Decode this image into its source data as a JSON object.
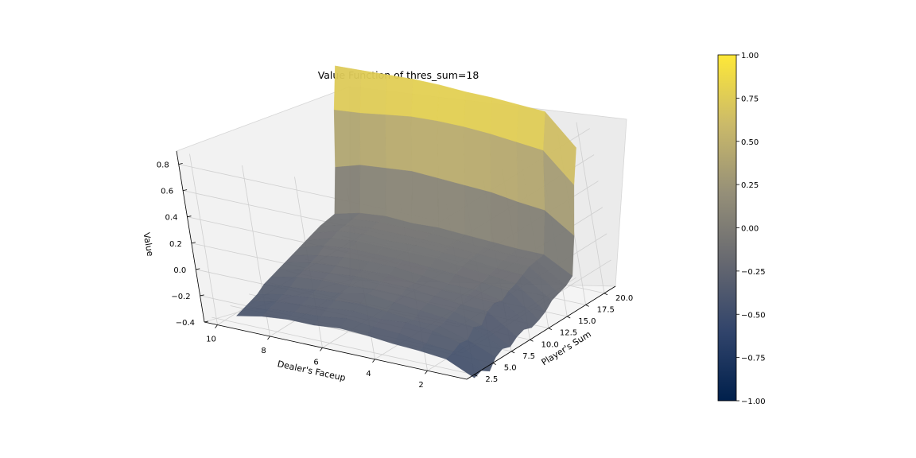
{
  "chart_data": {
    "type": "surface3d",
    "title": "Value Function of thres_sum=18",
    "xlabel": "Dealer's Faceup",
    "ylabel": "Player's Sum",
    "zlabel": "Value",
    "dealer": [
      1,
      2,
      3,
      4,
      5,
      6,
      7,
      8,
      9,
      10
    ],
    "player": [
      4,
      5,
      6,
      7,
      8,
      9,
      10,
      11,
      12,
      13,
      14,
      15,
      16,
      17,
      18,
      19,
      20,
      21
    ],
    "xticks": [
      "2",
      "4",
      "6",
      "8",
      "10"
    ],
    "yticks": [
      "2.5",
      "5.0",
      "7.5",
      "10.0",
      "12.5",
      "15.0",
      "17.5",
      "20.0"
    ],
    "zticks": [
      "−0.4",
      "−0.2",
      "0.0",
      "0.2",
      "0.4",
      "0.6",
      "0.8"
    ],
    "zlim": [
      -0.4,
      0.9
    ],
    "values": [
      [
        -0.5,
        -0.48,
        -0.52,
        -0.45,
        -0.42,
        -0.44,
        -0.4,
        -0.38,
        -0.4,
        -0.38,
        -0.35,
        -0.3,
        -0.28,
        -0.26,
        -0.22,
        0.05,
        0.4,
        0.65
      ],
      [
        -0.4,
        -0.38,
        -0.35,
        -0.36,
        -0.3,
        -0.32,
        -0.25,
        -0.22,
        -0.24,
        -0.2,
        -0.18,
        -0.15,
        -0.12,
        -0.11,
        -0.1,
        0.2,
        0.62,
        0.88
      ],
      [
        -0.38,
        -0.36,
        -0.3,
        -0.3,
        -0.28,
        -0.26,
        -0.24,
        -0.21,
        -0.2,
        -0.18,
        -0.16,
        -0.14,
        -0.12,
        -0.11,
        -0.1,
        0.22,
        0.64,
        0.89
      ],
      [
        -0.37,
        -0.33,
        -0.28,
        -0.3,
        -0.26,
        -0.24,
        -0.22,
        -0.21,
        -0.2,
        -0.16,
        -0.14,
        -0.12,
        -0.11,
        -0.1,
        -0.09,
        0.25,
        0.66,
        0.9
      ],
      [
        -0.35,
        -0.32,
        -0.3,
        -0.28,
        -0.24,
        -0.22,
        -0.2,
        -0.2,
        -0.18,
        -0.15,
        -0.12,
        -0.11,
        -0.1,
        -0.09,
        -0.08,
        0.26,
        0.67,
        0.9
      ],
      [
        -0.34,
        -0.3,
        -0.28,
        -0.26,
        -0.22,
        -0.22,
        -0.2,
        -0.18,
        -0.16,
        -0.14,
        -0.12,
        -0.1,
        -0.09,
        -0.08,
        -0.07,
        0.27,
        0.67,
        0.91
      ],
      [
        -0.36,
        -0.33,
        -0.3,
        -0.28,
        -0.26,
        -0.24,
        -0.2,
        -0.19,
        -0.16,
        -0.14,
        -0.12,
        -0.11,
        -0.09,
        -0.08,
        -0.08,
        0.28,
        0.66,
        0.91
      ],
      [
        -0.36,
        -0.34,
        -0.32,
        -0.3,
        -0.28,
        -0.24,
        -0.22,
        -0.2,
        -0.17,
        -0.14,
        -0.12,
        -0.1,
        -0.09,
        -0.08,
        -0.07,
        0.26,
        0.63,
        0.9
      ],
      [
        -0.38,
        -0.36,
        -0.34,
        -0.32,
        -0.3,
        -0.26,
        -0.24,
        -0.22,
        -0.2,
        -0.16,
        -0.14,
        -0.12,
        -0.11,
        -0.1,
        -0.09,
        0.24,
        0.6,
        0.89
      ],
      [
        -0.42,
        -0.4,
        -0.38,
        -0.36,
        -0.32,
        -0.3,
        -0.28,
        -0.26,
        -0.24,
        -0.22,
        -0.2,
        -0.18,
        -0.16,
        -0.15,
        -0.14,
        0.18,
        0.58,
        0.88
      ]
    ]
  },
  "colorbar": {
    "ticks": [
      "1.00",
      "0.75",
      "0.50",
      "0.25",
      "0.00",
      "−0.25",
      "−0.50",
      "−0.75",
      "−1.00"
    ],
    "range": [
      -1,
      1
    ],
    "colormap": "cividis",
    "colors": [
      "#00204c",
      "#31446b",
      "#666870",
      "#958f78",
      "#cbba69",
      "#fee838"
    ]
  }
}
